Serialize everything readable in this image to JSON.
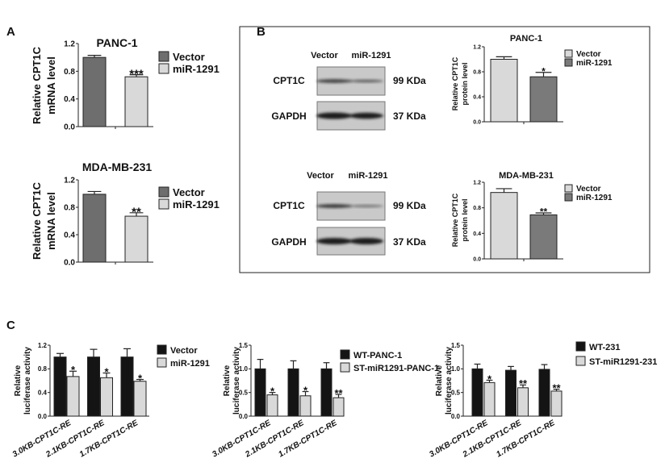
{
  "panel_labels": {
    "a": "A",
    "b": "B",
    "c": "C"
  },
  "colors": {
    "dark_gray": "#6e6e6e",
    "light_gray": "#d9d9d9",
    "black": "#141414",
    "blot_bg": "#c9c9c9",
    "band": "#1a1a1a"
  },
  "blots": [
    {
      "lanes": [
        "Vector",
        "miR-1291"
      ],
      "rows": [
        {
          "protein": "CPT1C",
          "size": "99 KDa"
        },
        {
          "protein": "GAPDH",
          "size": "37 KDa"
        }
      ]
    },
    {
      "lanes": [
        "Vector",
        "miR-1291"
      ],
      "rows": [
        {
          "protein": "CPT1C",
          "size": "99 KDa"
        },
        {
          "protein": "GAPDH",
          "size": "37 KDa"
        }
      ]
    }
  ],
  "chart_data": [
    {
      "id": "A1",
      "type": "bar",
      "title": "PANC-1",
      "ylabel": [
        "Relative CPT1C",
        "mRNA level"
      ],
      "ylim": [
        0,
        1.2
      ],
      "yticks": [
        "0.0",
        "0.4",
        "0.8",
        "1.2"
      ],
      "categories": [
        ""
      ],
      "legend": "right",
      "series": [
        {
          "name": "Vector",
          "color": "#6e6e6e",
          "values": [
            1.0
          ],
          "errors": [
            0.03
          ]
        },
        {
          "name": "miR-1291",
          "color": "#d9d9d9",
          "values": [
            0.72
          ],
          "errors": [
            0.03
          ],
          "significance": [
            "***"
          ]
        }
      ]
    },
    {
      "id": "A2",
      "type": "bar",
      "title": "MDA-MB-231",
      "ylabel": [
        "Relative CPT1C",
        "mRNA level"
      ],
      "ylim": [
        0,
        1.2
      ],
      "yticks": [
        "0.0",
        "0.4",
        "0.8",
        "1.2"
      ],
      "categories": [
        ""
      ],
      "legend": "right",
      "series": [
        {
          "name": "Vector",
          "color": "#6e6e6e",
          "values": [
            0.99
          ],
          "errors": [
            0.04
          ]
        },
        {
          "name": "miR-1291",
          "color": "#d9d9d9",
          "values": [
            0.67
          ],
          "errors": [
            0.05
          ],
          "significance": [
            "**"
          ]
        }
      ]
    },
    {
      "id": "B1",
      "type": "bar",
      "title": "PANC-1",
      "ylabel": [
        "Relative CPT1C",
        "protein level"
      ],
      "ylim": [
        0,
        1.2
      ],
      "yticks": [
        "0.0",
        "0.4",
        "0.8",
        "1.2"
      ],
      "categories": [
        ""
      ],
      "legend": "top-right",
      "series": [
        {
          "name": "Vector",
          "color": "#d9d9d9",
          "values": [
            1.0
          ],
          "errors": [
            0.04
          ]
        },
        {
          "name": "miR-1291",
          "color": "#7a7a7a",
          "values": [
            0.72
          ],
          "errors": [
            0.07
          ],
          "significance": [
            "*"
          ]
        }
      ]
    },
    {
      "id": "B2",
      "type": "bar",
      "title": "MDA-MB-231",
      "ylabel": [
        "Relative CPT1C",
        "protein level"
      ],
      "ylim": [
        0,
        1.2
      ],
      "yticks": [
        "0.0",
        "0.4",
        "0.8",
        "1.2"
      ],
      "categories": [
        ""
      ],
      "legend": "top-right",
      "series": [
        {
          "name": "Vector",
          "color": "#d9d9d9",
          "values": [
            1.04
          ],
          "errors": [
            0.06
          ]
        },
        {
          "name": "miR-1291",
          "color": "#7a7a7a",
          "values": [
            0.69
          ],
          "errors": [
            0.03
          ],
          "significance": [
            "**"
          ]
        }
      ]
    },
    {
      "id": "C1",
      "type": "bar",
      "title": "",
      "ylabel": [
        "Relative",
        "luciferase activity"
      ],
      "ylim": [
        0,
        1.2
      ],
      "yticks": [
        "0.0",
        "0.4",
        "0.8",
        "1.2"
      ],
      "categories": [
        "3.0KB-CPT1C-RE",
        "2.1KB-CPT1C-RE",
        "1.7KB-CPT1C-RE"
      ],
      "legend": "right",
      "series": [
        {
          "name": "Vector",
          "color": "#141414",
          "values": [
            1.0,
            1.0,
            1.0
          ],
          "errors": [
            0.06,
            0.13,
            0.14
          ]
        },
        {
          "name": "miR-1291",
          "color": "#d9d9d9",
          "values": [
            0.67,
            0.65,
            0.59
          ],
          "errors": [
            0.09,
            0.08,
            0.03
          ],
          "significance": [
            "*",
            "*",
            "*"
          ]
        }
      ]
    },
    {
      "id": "C2",
      "type": "bar",
      "title": "",
      "ylabel": [
        "Relative",
        "luciferase activity"
      ],
      "ylim": [
        0,
        1.5
      ],
      "yticks": [
        "0.0",
        "0.5",
        "1.0",
        "1.5"
      ],
      "categories": [
        "3.0KB-CPT1C-RE",
        "2.1KB-CPT1C-RE",
        "1.7KB-CPT1C-RE"
      ],
      "legend": "right",
      "series": [
        {
          "name": "WT-PANC-1",
          "color": "#141414",
          "values": [
            1.0,
            1.0,
            1.0
          ],
          "errors": [
            0.2,
            0.17,
            0.13
          ]
        },
        {
          "name": "ST-miR1291-PANC-1",
          "color": "#d9d9d9",
          "values": [
            0.45,
            0.43,
            0.39
          ],
          "errors": [
            0.05,
            0.09,
            0.07
          ],
          "significance": [
            "*",
            "*",
            "**"
          ]
        }
      ]
    },
    {
      "id": "C3",
      "type": "bar",
      "title": "",
      "ylabel": [
        "Relative",
        "luciferase activity"
      ],
      "ylim": [
        0,
        1.5
      ],
      "yticks": [
        "0.0",
        "0.5",
        "1.0",
        "1.5"
      ],
      "categories": [
        "3.0KB-CPT1C-RE",
        "2.1KB-CPT1C-RE",
        "1.7KB-CPT1C-RE"
      ],
      "legend": "top-right",
      "series": [
        {
          "name": "WT-231",
          "color": "#141414",
          "values": [
            1.0,
            0.97,
            0.99
          ],
          "errors": [
            0.1,
            0.08,
            0.1
          ]
        },
        {
          "name": "ST-miR1291-231",
          "color": "#d9d9d9",
          "values": [
            0.71,
            0.6,
            0.53
          ],
          "errors": [
            0.05,
            0.06,
            0.04
          ],
          "significance": [
            "*",
            "**",
            "**"
          ]
        }
      ]
    }
  ]
}
